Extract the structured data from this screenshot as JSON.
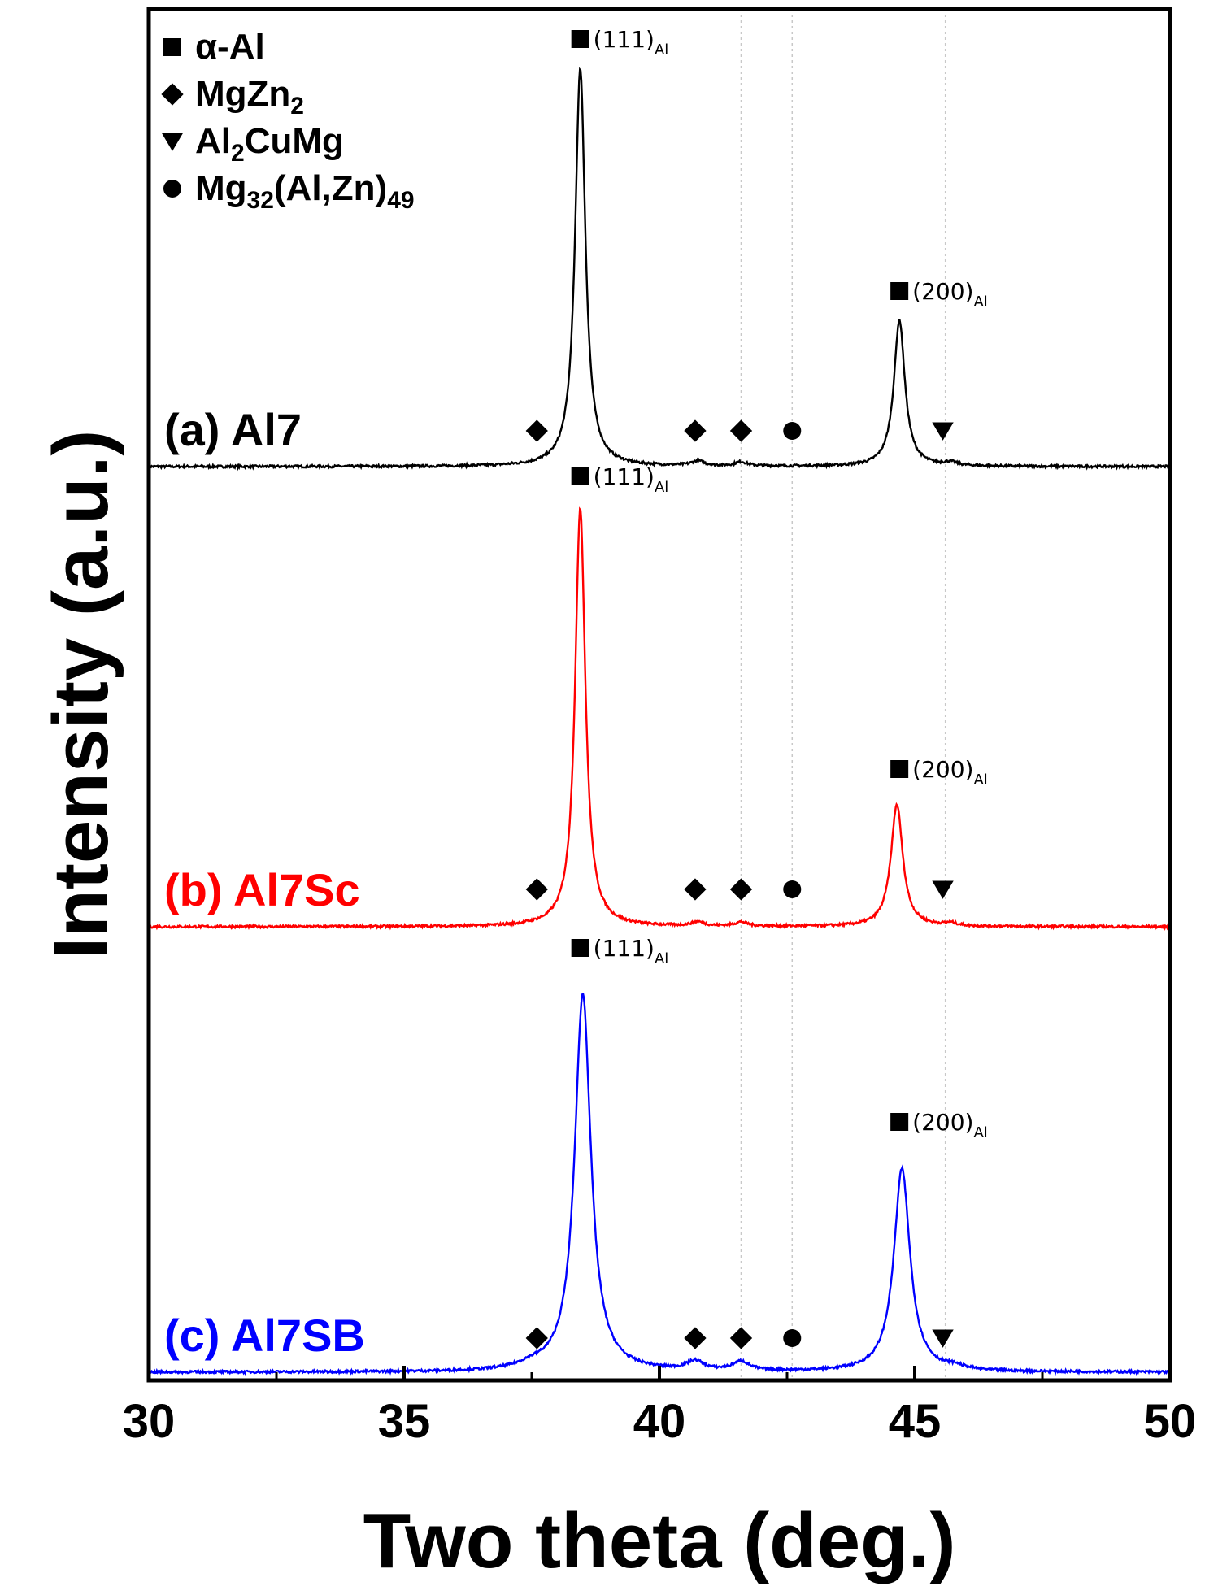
{
  "chart_data": {
    "type": "line",
    "xlabel": "Two theta (deg.)",
    "ylabel": "Intensity (a.u.)",
    "xlim": [
      30,
      50
    ],
    "xticks": [
      30,
      35,
      40,
      45,
      50
    ],
    "xtick_labels": [
      "30",
      "35",
      "40",
      "45",
      "50"
    ],
    "grid": false,
    "reference_lines_x": [
      41.6,
      42.6,
      45.6
    ],
    "legend": {
      "placement": "top-left",
      "entries": [
        {
          "marker": "square",
          "text": "α-Al",
          "sub": ""
        },
        {
          "marker": "diamond",
          "text": "MgZn",
          "sub": "2",
          "tail": ""
        },
        {
          "marker": "triangle-down",
          "text": "Al",
          "sub": "2",
          "tail": "CuMg"
        },
        {
          "marker": "circle",
          "text": "Mg",
          "sub": "32",
          "tail": "(Al,Zn)",
          "sub2": "49"
        }
      ]
    },
    "series": [
      {
        "name": "(a) Al7",
        "color": "#000000",
        "baseline": 0,
        "peaks": [
          {
            "x": 38.45,
            "height": 0.98,
            "width": 0.12
          },
          {
            "x": 44.7,
            "height": 0.36,
            "width": 0.13
          },
          {
            "x": 40.75,
            "height": 0.012,
            "width": 0.15
          },
          {
            "x": 41.6,
            "height": 0.01,
            "width": 0.15
          },
          {
            "x": 45.7,
            "height": 0.008,
            "width": 0.15
          }
        ],
        "peak_labels": [
          {
            "x": 38.45,
            "text": "(111)",
            "sub": "Al"
          },
          {
            "x": 44.7,
            "text": "(200)",
            "sub": "Al"
          }
        ],
        "phase_markers": [
          {
            "x": 37.6,
            "marker": "diamond"
          },
          {
            "x": 40.7,
            "marker": "diamond"
          },
          {
            "x": 41.6,
            "marker": "diamond"
          },
          {
            "x": 42.6,
            "marker": "circle"
          },
          {
            "x": 45.55,
            "marker": "triangle-down"
          }
        ]
      },
      {
        "name": "(b) Al7Sc",
        "color": "#ff0000",
        "baseline": 0,
        "peaks": [
          {
            "x": 38.45,
            "height": 1.03,
            "width": 0.12
          },
          {
            "x": 44.65,
            "height": 0.3,
            "width": 0.14
          },
          {
            "x": 40.75,
            "height": 0.01,
            "width": 0.15
          },
          {
            "x": 41.6,
            "height": 0.01,
            "width": 0.15
          },
          {
            "x": 45.7,
            "height": 0.007,
            "width": 0.15
          }
        ],
        "peak_labels": [
          {
            "x": 38.45,
            "text": "(111)",
            "sub": "Al"
          },
          {
            "x": 44.7,
            "text": "(200)",
            "sub": "Al"
          }
        ],
        "phase_markers": [
          {
            "x": 37.6,
            "marker": "diamond"
          },
          {
            "x": 40.7,
            "marker": "diamond"
          },
          {
            "x": 41.6,
            "marker": "diamond"
          },
          {
            "x": 42.6,
            "marker": "circle"
          },
          {
            "x": 45.55,
            "marker": "triangle-down"
          }
        ]
      },
      {
        "name": "(c) Al7SB",
        "color": "#0000ff",
        "baseline": 0,
        "peaks": [
          {
            "x": 38.5,
            "height": 0.93,
            "width": 0.19
          },
          {
            "x": 44.75,
            "height": 0.5,
            "width": 0.19
          },
          {
            "x": 37.5,
            "height": 0.01,
            "width": 0.3
          },
          {
            "x": 40.7,
            "height": 0.022,
            "width": 0.2
          },
          {
            "x": 41.6,
            "height": 0.022,
            "width": 0.2
          },
          {
            "x": 45.8,
            "height": 0.008,
            "width": 0.2
          }
        ],
        "peak_labels": [
          {
            "x": 38.45,
            "text": "(111)",
            "sub": "Al"
          },
          {
            "x": 44.7,
            "text": "(200)",
            "sub": "Al"
          }
        ],
        "phase_markers": [
          {
            "x": 37.6,
            "marker": "diamond"
          },
          {
            "x": 40.7,
            "marker": "diamond"
          },
          {
            "x": 41.6,
            "marker": "diamond"
          },
          {
            "x": 42.6,
            "marker": "circle"
          },
          {
            "x": 45.55,
            "marker": "triangle-down"
          }
        ]
      }
    ]
  }
}
